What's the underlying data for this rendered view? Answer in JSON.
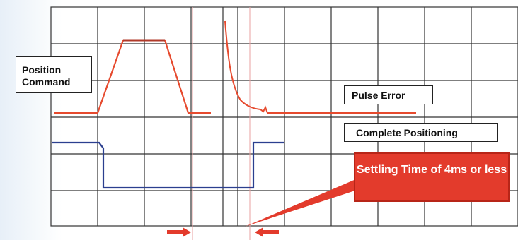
{
  "labels": {
    "position_command": "Position Command",
    "pulse_error": "Pulse Error",
    "complete_positioning": "Complete Positioning",
    "settling_time": "Settling Time of 4ms or less"
  },
  "colors": {
    "position_trace": "#e64a2e",
    "positioning_trace": "#2b3f8f",
    "callout_fill": "#e33b2c",
    "grid": "#333333"
  },
  "icons": [
    "right-arrow-icon",
    "left-arrow-icon"
  ]
}
